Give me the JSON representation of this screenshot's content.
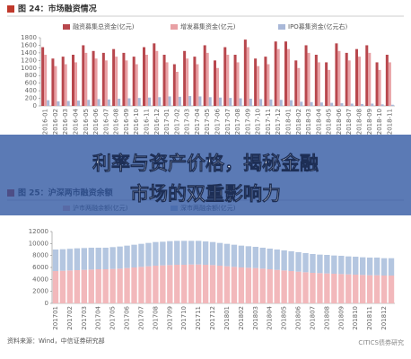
{
  "chart_data": [
    {
      "type": "bar",
      "title": "图 24：市场融资情况",
      "categories": [
        "2016-01",
        "2016-02",
        "2016-03",
        "2016-04",
        "2016-05",
        "2016-06",
        "2016-07",
        "2016-08",
        "2016-09",
        "2016-10",
        "2016-11",
        "2016-12",
        "2017-01",
        "2017-02",
        "2017-03",
        "2017-04",
        "2017-05",
        "2017-06",
        "2017-07",
        "2017-08",
        "2017-09",
        "2017-10",
        "2017-11",
        "2017-12",
        "2018-01",
        "2018-02",
        "2018-03",
        "2018-04",
        "2018-05",
        "2018-06",
        "2018-07",
        "2018-08",
        "2018-09",
        "2018-10",
        "2018-11"
      ],
      "series": [
        {
          "name": "融资募集总资金(亿元)",
          "color": "#b8474d",
          "values": [
            1550,
            1250,
            1300,
            1350,
            1600,
            1450,
            1400,
            1500,
            1400,
            1300,
            1550,
            1650,
            1350,
            1100,
            1450,
            1300,
            1600,
            1200,
            1550,
            1350,
            1750,
            1250,
            1300,
            1700,
            1700,
            1200,
            1600,
            1350,
            1150,
            1650,
            1400,
            1500,
            1600,
            1150,
            1350
          ]
        },
        {
          "name": "增发募集资金(亿元)",
          "color": "#e8a0a4",
          "values": [
            1350,
            1050,
            1100,
            1150,
            1400,
            1250,
            1200,
            1300,
            1200,
            1100,
            1350,
            1450,
            1150,
            900,
            1250,
            1100,
            1400,
            1000,
            1350,
            1150,
            1550,
            1050,
            1100,
            1500,
            1500,
            1000,
            1400,
            1150,
            950,
            1450,
            1200,
            1300,
            1400,
            950,
            1150
          ]
        },
        {
          "name": "IPO募集资金(亿元右)",
          "color": "#a9b8d8",
          "values": [
            150,
            120,
            130,
            140,
            160,
            180,
            170,
            190,
            200,
            210,
            220,
            230,
            250,
            240,
            260,
            250,
            230,
            220,
            210,
            200,
            190,
            180,
            170,
            160,
            150,
            110,
            100,
            90,
            80,
            70,
            60,
            50,
            60,
            40,
            30
          ]
        }
      ],
      "ylim": [
        0,
        1800
      ],
      "yticks": [
        0,
        200,
        400,
        600,
        800,
        1000,
        1200,
        1400,
        1600,
        1800
      ]
    },
    {
      "type": "stacked_bar",
      "title": "图 25：沪深两市融资余额",
      "categories": [
        "201701",
        null,
        "201702",
        null,
        "201703",
        null,
        "201704",
        null,
        "201705",
        null,
        "201706",
        null,
        "201707",
        null,
        "201708",
        null,
        "201709",
        null,
        "201710",
        null,
        "201711",
        null,
        "201712",
        null,
        "201801",
        null,
        "201802",
        null,
        "201803",
        null,
        "201804",
        null,
        "201805",
        null,
        "201806",
        null,
        "201807",
        null,
        "201808",
        null,
        "201809",
        null,
        "201810",
        null,
        "201811",
        null,
        "201812",
        null
      ],
      "series": [
        {
          "name": "沪市两融余额(亿元)",
          "color": "#f2b8bb",
          "values": [
            5400,
            5450,
            5500,
            5550,
            5600,
            5650,
            5700,
            5700,
            5750,
            5800,
            5900,
            6000,
            6100,
            6200,
            6300,
            6350,
            6400,
            6450,
            6450,
            6500,
            6500,
            6450,
            6400,
            6300,
            6200,
            6100,
            6000,
            5950,
            5900,
            5800,
            5700,
            5600,
            5500,
            5400,
            5300,
            5200,
            5100,
            5050,
            5000,
            4950,
            4900,
            4850,
            4800,
            4750,
            4700,
            4700,
            4650,
            4650
          ]
        },
        {
          "name": "深市两融余额(亿元)",
          "color": "#b4c6e0",
          "values": [
            3600,
            3600,
            3620,
            3650,
            3650,
            3650,
            3600,
            3600,
            3650,
            3700,
            3750,
            3800,
            3850,
            3900,
            3950,
            3950,
            4000,
            4000,
            4000,
            3950,
            3950,
            3900,
            3850,
            3800,
            3750,
            3700,
            3650,
            3600,
            3550,
            3500,
            3450,
            3400,
            3350,
            3300,
            3250,
            3200,
            3150,
            3100,
            3100,
            3050,
            3050,
            3000,
            3000,
            2950,
            2950,
            2950,
            2900,
            2900
          ]
        }
      ],
      "ylim": [
        0,
        12000
      ],
      "yticks": [
        0,
        2000,
        4000,
        6000,
        8000,
        10000,
        12000
      ],
      "source": "资料来源：Wind，中信证券研究部"
    }
  ],
  "banner": {
    "lines": [
      "利率与资产价格，揭秘金融",
      "市场的双重影响力"
    ]
  },
  "watermark": "CITICS债券研究"
}
